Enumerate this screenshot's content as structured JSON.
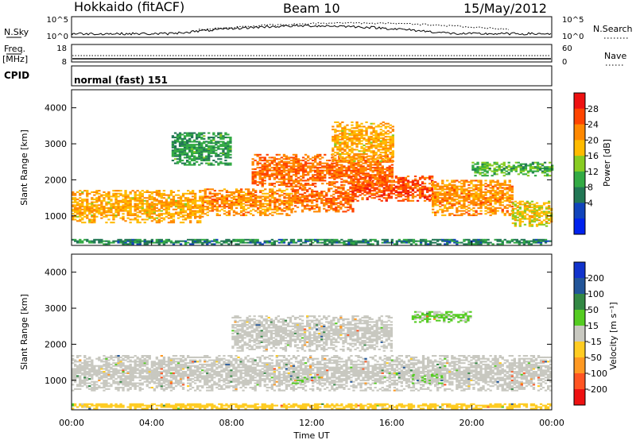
{
  "header": {
    "station": "Hokkaido (fitACF)",
    "beam": "Beam 10",
    "date": "15/May/2012"
  },
  "strip_panels": {
    "nsky": {
      "left_label": "N.Sky",
      "left_top": "10^5",
      "left_bottom": "10^0",
      "right_top": "10^5",
      "right_bottom": "10^0",
      "right_label": "N.Search",
      "right_legend_style": "dotted"
    },
    "freq": {
      "left_label": "Freq.",
      "left_unit": "[MHz]",
      "left_top": "18",
      "left_bottom": "8",
      "right_top": "60",
      "right_bottom": "0",
      "right_label": "Nave",
      "right_legend_style": "dotted"
    },
    "cpid": {
      "label": "CPID",
      "value": "normal (fast) 151"
    }
  },
  "colorbars": {
    "power": {
      "label": "Power [dB]",
      "ticks": [
        "28",
        "24",
        "20",
        "16",
        "12",
        "8",
        "4"
      ],
      "colors": [
        "#ee1111",
        "#ff4400",
        "#ff8800",
        "#ffbb00",
        "#88cc22",
        "#33aa44",
        "#227755",
        "#1144bb",
        "#0022ee"
      ]
    },
    "velocity": {
      "label": "Velocity [m s⁻¹]",
      "ticks": [
        "200",
        "100",
        "50",
        "15",
        "-15",
        "-50",
        "-100",
        "-200"
      ],
      "colors": [
        "#1133cc",
        "#225599",
        "#338844",
        "#55cc22",
        "#c8c8c0",
        "#ffcc22",
        "#ff9922",
        "#ff5522",
        "#ee1111"
      ]
    }
  },
  "axes": {
    "ylabel": "Slant Range [km]",
    "xlabel": "Time UT",
    "yticks": [
      "4000",
      "3000",
      "2000",
      "1000"
    ],
    "xticks": [
      "00:00",
      "04:00",
      "08:00",
      "12:00",
      "16:00",
      "20:00",
      "00:00"
    ]
  },
  "chart_data": [
    {
      "type": "heatmap",
      "title": "Power",
      "xlabel": "Time UT",
      "ylabel": "Slant Range [km]",
      "xlim": [
        0,
        24
      ],
      "ylim": [
        180,
        4500
      ],
      "units": "dB",
      "color_range": [
        2,
        32
      ],
      "bands": [
        {
          "t": [
            0,
            6.5
          ],
          "r": [
            800,
            1700
          ],
          "level": 22
        },
        {
          "t": [
            6.5,
            11
          ],
          "r": [
            1000,
            1750
          ],
          "level": 24
        },
        {
          "t": [
            11,
            14
          ],
          "r": [
            1100,
            1800
          ],
          "level": 26
        },
        {
          "t": [
            14,
            18
          ],
          "r": [
            1400,
            2100
          ],
          "level": 28
        },
        {
          "t": [
            18,
            22
          ],
          "r": [
            1000,
            2000
          ],
          "level": 24
        },
        {
          "t": [
            22,
            24
          ],
          "r": [
            700,
            1400
          ],
          "level": 20
        },
        {
          "t": [
            9,
            16
          ],
          "r": [
            1800,
            2700
          ],
          "level": 26
        },
        {
          "t": [
            13,
            16
          ],
          "r": [
            2500,
            3600
          ],
          "level": 22
        },
        {
          "t": [
            5,
            8
          ],
          "r": [
            2400,
            3300
          ],
          "level": 12
        },
        {
          "t": [
            20,
            24
          ],
          "r": [
            2100,
            2500
          ],
          "level": 14
        },
        {
          "t": [
            0,
            24
          ],
          "r": [
            200,
            350
          ],
          "level": 10
        }
      ]
    },
    {
      "type": "heatmap",
      "title": "Velocity",
      "xlabel": "Time UT",
      "ylabel": "Slant Range [km]",
      "xlim": [
        0,
        24
      ],
      "ylim": [
        180,
        4500
      ],
      "units": "m s^-1",
      "color_range": [
        -250,
        250
      ],
      "bands": [
        {
          "t": [
            0,
            24
          ],
          "r": [
            700,
            1700
          ],
          "level": 0
        },
        {
          "t": [
            8,
            16
          ],
          "r": [
            1800,
            2800
          ],
          "level": 0
        },
        {
          "t": [
            11,
            12.5
          ],
          "r": [
            900,
            1100
          ],
          "level": 30
        },
        {
          "t": [
            17,
            18.5
          ],
          "r": [
            900,
            1150
          ],
          "level": 30
        },
        {
          "t": [
            17,
            20
          ],
          "r": [
            2600,
            2900
          ],
          "level": 35
        },
        {
          "t": [
            0,
            24
          ],
          "r": [
            200,
            350
          ],
          "level": -60
        }
      ]
    }
  ]
}
